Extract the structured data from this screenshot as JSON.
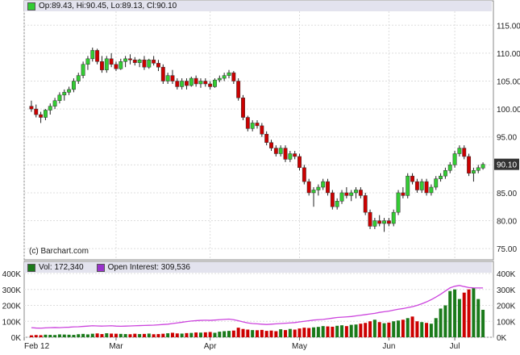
{
  "legend": {
    "ohlc": "Op:89.43, Hi:90.45, Lo:89.13, Cl:90.10",
    "swatch_color": "#33cc33"
  },
  "credit": "(c) Barchart.com",
  "last_price_label": "90.10",
  "volume_legend": {
    "vol": "Vol: 172,340",
    "oi": "Open Interest: 309,536",
    "vol_color": "#1b7a1b",
    "oi_color": "#9933cc"
  },
  "colors": {
    "up": "#33cc33",
    "down": "#cc0000",
    "oi_line": "#cc44dd",
    "vol_up": "#1a7a1a",
    "vol_down": "#cc0000"
  },
  "chart_data": [
    {
      "type": "candlestick",
      "title": "",
      "x_tick_labels": [
        "Feb 12",
        "Mar",
        "Apr",
        "May",
        "Jun",
        "Jul"
      ],
      "y_tick_labels": [
        "75.00",
        "80.00",
        "85.00",
        "90.00",
        "95.00",
        "100.00",
        "105.00",
        "110.00",
        "115.00"
      ],
      "ylim": [
        73,
        117.5
      ],
      "grid": true,
      "ohlc": [
        [
          100.5,
          101.5,
          99.5,
          100.0
        ],
        [
          100.0,
          100.8,
          98.5,
          99.0
        ],
        [
          99.0,
          99.5,
          97.5,
          98.5
        ],
        [
          98.5,
          100.0,
          98.0,
          99.8
        ],
        [
          99.8,
          101.0,
          99.0,
          100.5
        ],
        [
          100.5,
          102.0,
          100.0,
          101.5
        ],
        [
          101.5,
          103.0,
          101.0,
          102.5
        ],
        [
          102.5,
          103.5,
          101.5,
          103.0
        ],
        [
          103.0,
          104.0,
          102.5,
          103.5
        ],
        [
          103.5,
          105.5,
          103.0,
          105.0
        ],
        [
          105.0,
          106.5,
          104.5,
          106.0
        ],
        [
          106.0,
          108.5,
          105.5,
          108.0
        ],
        [
          108.0,
          109.5,
          107.0,
          109.0
        ],
        [
          109.0,
          111.0,
          108.5,
          110.5
        ],
        [
          110.5,
          110.8,
          108.0,
          108.5
        ],
        [
          108.5,
          109.5,
          106.5,
          107.0
        ],
        [
          107.0,
          109.5,
          106.5,
          109.0
        ],
        [
          109.0,
          110.0,
          107.5,
          108.0
        ],
        [
          108.0,
          108.5,
          106.8,
          107.2
        ],
        [
          107.2,
          109.0,
          107.0,
          108.5
        ],
        [
          108.5,
          109.5,
          107.5,
          109.0
        ],
        [
          109.0,
          109.8,
          108.0,
          108.8
        ],
        [
          108.8,
          109.3,
          107.8,
          108.3
        ],
        [
          108.3,
          109.0,
          107.5,
          108.8
        ],
        [
          108.8,
          109.5,
          107.0,
          107.5
        ],
        [
          107.5,
          109.0,
          107.2,
          108.8
        ],
        [
          108.8,
          109.5,
          107.8,
          108.2
        ],
        [
          108.2,
          108.8,
          106.8,
          107.5
        ],
        [
          107.5,
          108.0,
          104.5,
          105.0
        ],
        [
          105.0,
          106.5,
          104.5,
          106.0
        ],
        [
          106.0,
          107.0,
          104.5,
          105.0
        ],
        [
          105.0,
          105.5,
          103.5,
          104.0
        ],
        [
          104.0,
          105.5,
          103.5,
          105.0
        ],
        [
          105.0,
          105.5,
          103.5,
          104.2
        ],
        [
          104.2,
          105.8,
          104.0,
          105.5
        ],
        [
          105.5,
          106.0,
          104.0,
          104.5
        ],
        [
          104.5,
          105.5,
          103.8,
          105.0
        ],
        [
          105.0,
          105.5,
          104.0,
          104.5
        ],
        [
          104.5,
          105.0,
          103.5,
          104.0
        ],
        [
          104.0,
          105.5,
          103.8,
          105.2
        ],
        [
          105.2,
          106.0,
          104.8,
          105.5
        ],
        [
          105.5,
          106.5,
          105.0,
          106.0
        ],
        [
          106.0,
          107.0,
          105.5,
          106.5
        ],
        [
          106.5,
          106.8,
          104.5,
          105.0
        ],
        [
          105.0,
          105.5,
          101.5,
          102.0
        ],
        [
          102.0,
          102.5,
          98.0,
          98.5
        ],
        [
          98.5,
          98.8,
          96.0,
          96.5
        ],
        [
          96.5,
          98.0,
          96.0,
          97.5
        ],
        [
          97.5,
          98.0,
          96.5,
          97.0
        ],
        [
          97.0,
          97.5,
          95.0,
          95.5
        ],
        [
          95.5,
          96.0,
          93.5,
          94.0
        ],
        [
          94.0,
          94.5,
          92.5,
          93.0
        ],
        [
          93.0,
          93.5,
          91.5,
          92.0
        ],
        [
          92.0,
          93.5,
          91.5,
          93.0
        ],
        [
          93.0,
          93.5,
          90.5,
          91.0
        ],
        [
          91.0,
          92.5,
          90.5,
          92.0
        ],
        [
          92.0,
          92.5,
          91.0,
          91.5
        ],
        [
          91.5,
          92.0,
          89.0,
          89.5
        ],
        [
          89.5,
          90.0,
          86.5,
          87.0
        ],
        [
          87.0,
          87.5,
          84.5,
          85.0
        ],
        [
          85.0,
          86.0,
          82.5,
          85.5
        ],
        [
          85.5,
          86.5,
          84.5,
          86.0
        ],
        [
          86.0,
          87.5,
          85.5,
          87.0
        ],
        [
          87.0,
          87.5,
          84.5,
          85.0
        ],
        [
          85.0,
          85.5,
          82.0,
          82.5
        ],
        [
          82.5,
          84.0,
          82.0,
          83.5
        ],
        [
          83.5,
          85.5,
          83.0,
          85.0
        ],
        [
          85.0,
          86.0,
          84.0,
          84.5
        ],
        [
          84.5,
          85.5,
          83.5,
          85.0
        ],
        [
          85.0,
          86.0,
          84.0,
          85.5
        ],
        [
          85.5,
          86.0,
          84.0,
          84.5
        ],
        [
          84.5,
          85.0,
          81.0,
          81.5
        ],
        [
          81.5,
          82.0,
          78.5,
          79.0
        ],
        [
          79.0,
          80.5,
          78.5,
          80.0
        ],
        [
          80.0,
          81.0,
          79.0,
          79.5
        ],
        [
          79.5,
          80.5,
          78.0,
          80.0
        ],
        [
          80.0,
          80.5,
          79.0,
          79.5
        ],
        [
          79.5,
          82.0,
          79.0,
          81.5
        ],
        [
          81.5,
          85.5,
          81.0,
          85.0
        ],
        [
          85.0,
          86.0,
          84.0,
          84.5
        ],
        [
          84.5,
          88.5,
          84.0,
          88.0
        ],
        [
          88.0,
          88.5,
          86.5,
          87.0
        ],
        [
          87.0,
          87.5,
          85.0,
          85.5
        ],
        [
          85.5,
          87.5,
          85.0,
          87.0
        ],
        [
          87.0,
          87.5,
          84.5,
          85.0
        ],
        [
          85.0,
          86.5,
          84.5,
          86.0
        ],
        [
          86.0,
          88.0,
          85.5,
          87.5
        ],
        [
          87.5,
          88.5,
          87.0,
          88.0
        ],
        [
          88.0,
          89.5,
          87.5,
          89.0
        ],
        [
          89.0,
          90.5,
          88.5,
          90.0
        ],
        [
          90.0,
          92.5,
          89.5,
          92.0
        ],
        [
          92.0,
          93.5,
          91.5,
          93.0
        ],
        [
          93.0,
          93.5,
          91.0,
          91.5
        ],
        [
          91.5,
          92.0,
          88.0,
          88.5
        ],
        [
          88.5,
          89.5,
          87.0,
          89.0
        ],
        [
          89.0,
          90.0,
          88.5,
          89.5
        ],
        [
          89.43,
          90.45,
          89.13,
          90.1
        ]
      ]
    },
    {
      "type": "bar+line",
      "series": [
        {
          "name": "Vol",
          "values": [
            12000,
            14000,
            13000,
            16000,
            15000,
            14000,
            18000,
            17000,
            16000,
            15000,
            19000,
            21000,
            18000,
            22000,
            24000,
            20000,
            25000,
            23000,
            22000,
            21000,
            20000,
            19000,
            22000,
            20000,
            21000,
            23000,
            19000,
            20000,
            22000,
            25000,
            28000,
            24000,
            23000,
            26000,
            27000,
            30000,
            29000,
            31000,
            33000,
            28000,
            35000,
            38000,
            40000,
            42000,
            60000,
            52000,
            48000,
            45000,
            44000,
            46000,
            40000,
            42000,
            38000,
            50000,
            45000,
            52000,
            48000,
            55000,
            60000,
            58000,
            62000,
            65000,
            70000,
            68000,
            66000,
            72000,
            75000,
            70000,
            78000,
            80000,
            85000,
            90000,
            100000,
            110000,
            95000,
            88000,
            92000,
            100000,
            105000,
            110000,
            120000,
            130000,
            100000,
            95000,
            90000,
            85000,
            120000,
            180000,
            200000,
            290000,
            300000,
            240000,
            280000,
            300000,
            310000,
            240000,
            172340
          ]
        },
        {
          "name": "Open Interest",
          "values": [
            60000,
            58000,
            57000,
            59000,
            60000,
            61000,
            60000,
            62000,
            63000,
            65000,
            66000,
            68000,
            70000,
            72000,
            71000,
            70000,
            71000,
            72000,
            70000,
            69000,
            70000,
            71000,
            72000,
            73000,
            74000,
            75000,
            76000,
            78000,
            80000,
            82000,
            86000,
            90000,
            94000,
            98000,
            102000,
            104000,
            106000,
            107000,
            106000,
            108000,
            110000,
            112000,
            114000,
            110000,
            104000,
            96000,
            90000,
            86000,
            84000,
            82000,
            80000,
            82000,
            84000,
            86000,
            88000,
            90000,
            92000,
            96000,
            100000,
            104000,
            108000,
            110000,
            112000,
            116000,
            120000,
            124000,
            126000,
            128000,
            130000,
            134000,
            138000,
            142000,
            146000,
            150000,
            156000,
            160000,
            164000,
            170000,
            176000,
            180000,
            186000,
            192000,
            200000,
            210000,
            222000,
            236000,
            252000,
            270000,
            290000,
            310000,
            320000,
            325000,
            318000,
            312000,
            310000,
            309536,
            309536
          ]
        }
      ],
      "x_tick_labels": [
        "Feb 12",
        "Mar",
        "Apr",
        "May",
        "Jun",
        "Jul"
      ],
      "y_tick_labels": [
        "0K",
        "100K",
        "200K",
        "300K",
        "400K"
      ],
      "ylim": [
        0,
        400000
      ]
    }
  ]
}
